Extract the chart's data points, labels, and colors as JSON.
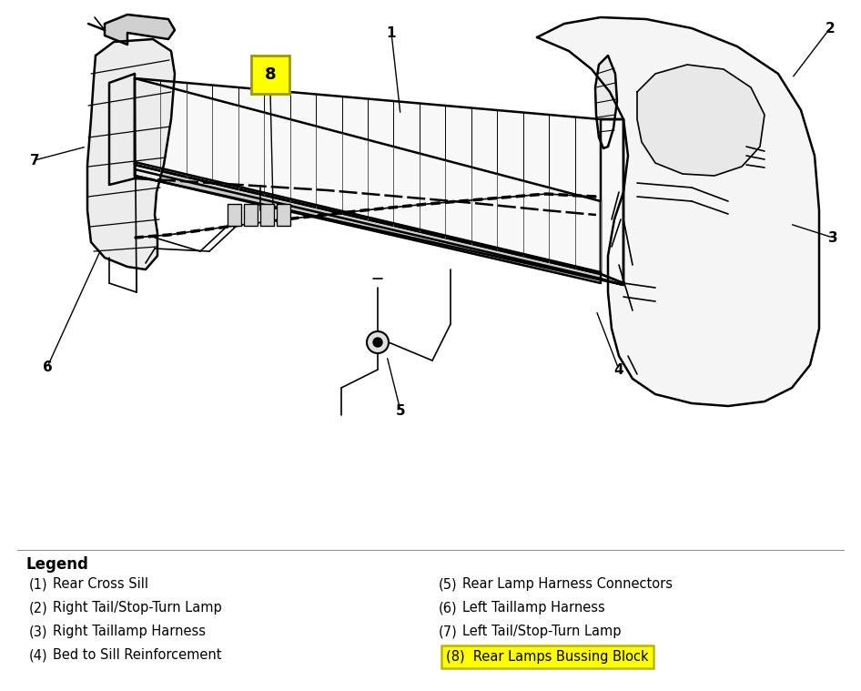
{
  "background_color": "#ffffff",
  "legend_title": "Legend",
  "legend_items_left": [
    [
      "(1)",
      "Rear Cross Sill"
    ],
    [
      "(2)",
      "Right Tail/Stop-Turn Lamp"
    ],
    [
      "(3)",
      "Right Taillamp Harness"
    ],
    [
      "(4)",
      "Bed to Sill Reinforcement"
    ]
  ],
  "legend_items_right": [
    [
      "(5)",
      "Rear Lamp Harness Connectors"
    ],
    [
      "(6)",
      "Left Taillamp Harness"
    ],
    [
      "(7)",
      "Left Tail/Stop-Turn Lamp"
    ],
    [
      "(8)",
      "Rear Lamps Bussing Block"
    ]
  ],
  "highlight_item_index": 3,
  "highlight_color": "#ffff00",
  "highlight_edge_color": "#b8b800",
  "label_8_box_color": "#ffff00",
  "fig_width": 9.46,
  "fig_height": 7.59,
  "dpi": 100,
  "line_color": "#000000"
}
